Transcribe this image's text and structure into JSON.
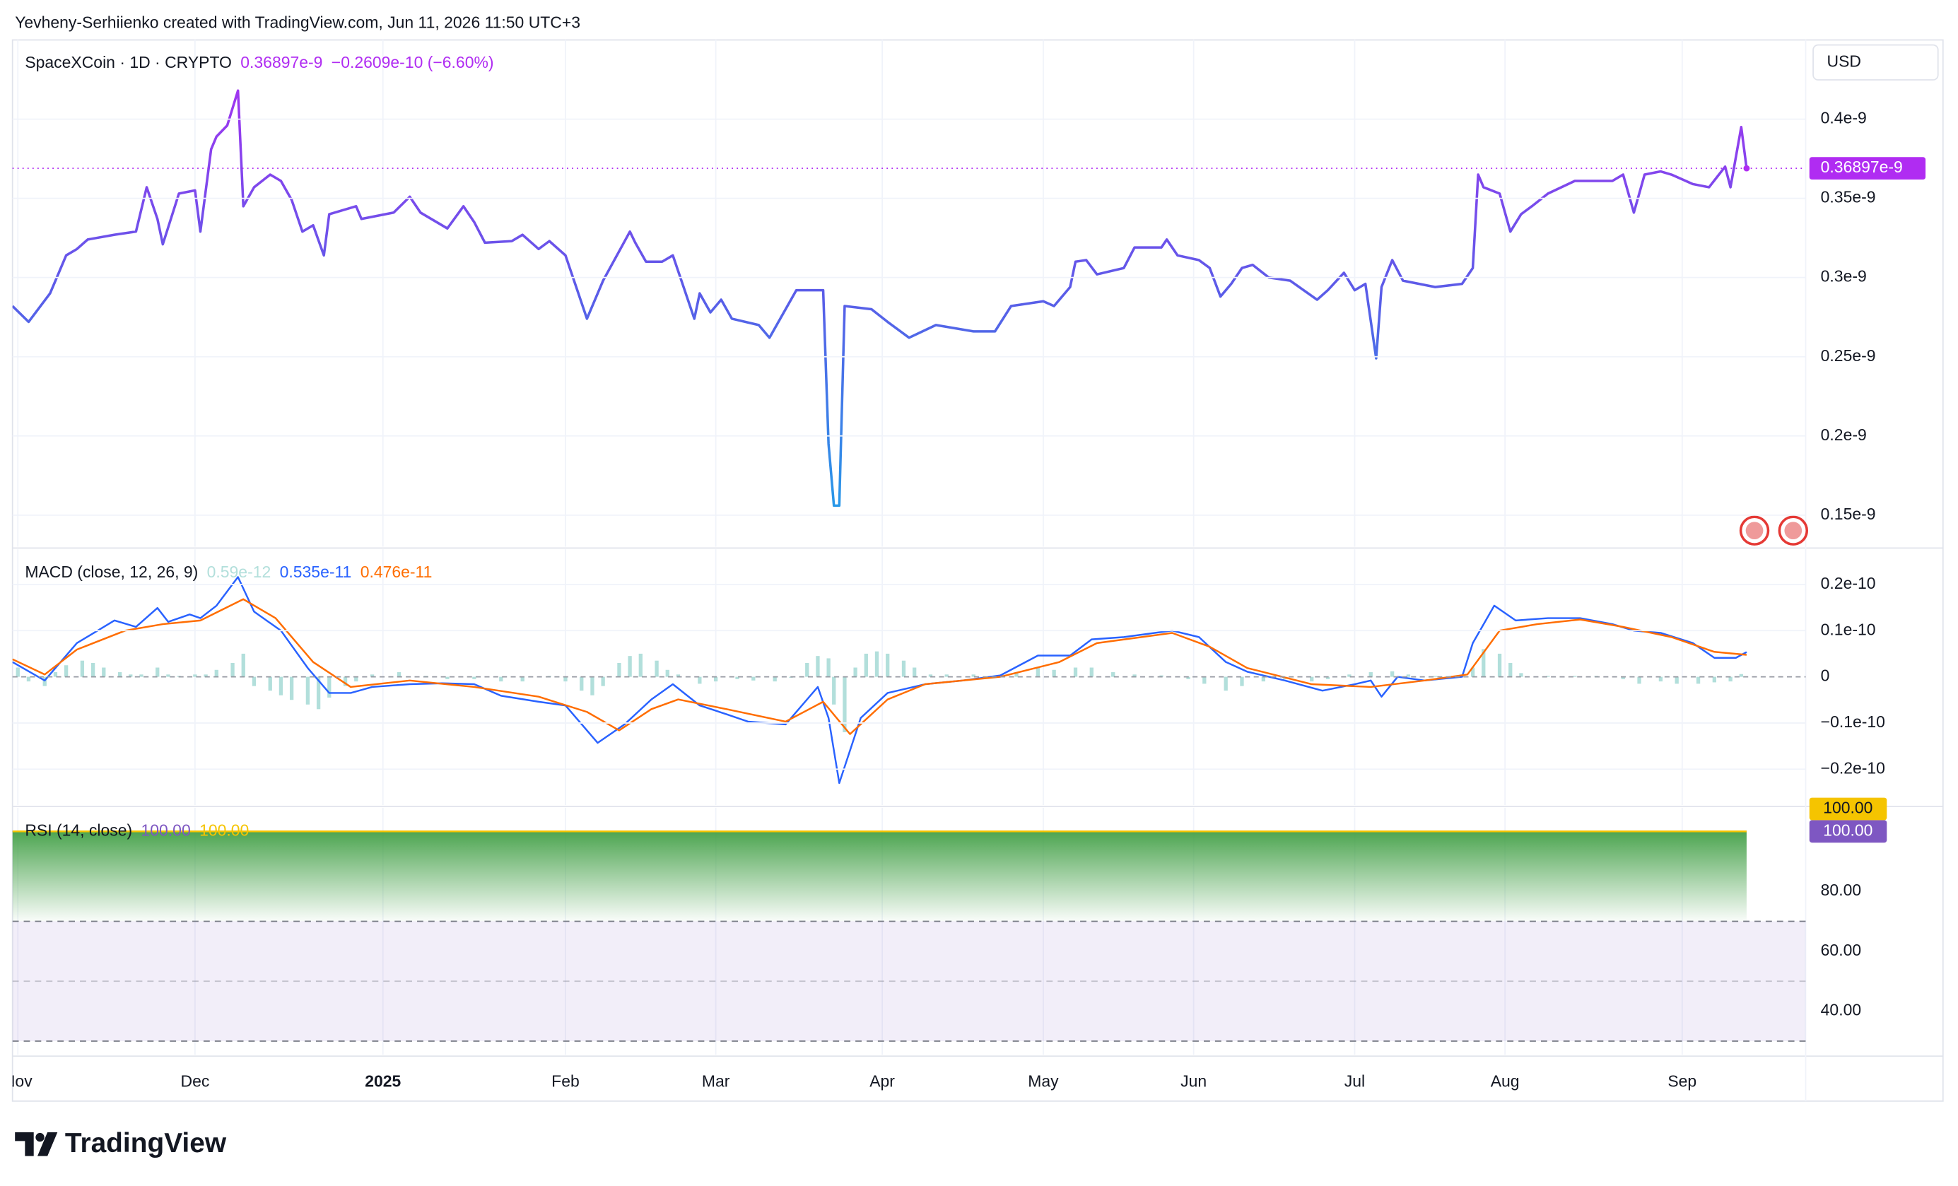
{
  "attribution": "Yevheny-Serhiienko created with TradingView.com, Jun 11, 2026 11:50 UTC+3",
  "logo_text": "TradingView",
  "chart_data": [
    {
      "type": "line",
      "title": "SpaceXCoin · 1D · CRYPTO",
      "last_label": "0.36897e-9",
      "change_label": "−0.2609e-10 (−6.60%)",
      "currency": "USD",
      "xlim": [
        0,
        334
      ],
      "ylim": [
        1.3e-10,
        4.5e-10
      ],
      "grid": true,
      "yticks": [
        {
          "value": 1.5e-10,
          "label": "0.15e-9"
        },
        {
          "value": 2e-10,
          "label": "0.2e-9"
        },
        {
          "value": 2.5e-10,
          "label": "0.25e-9"
        },
        {
          "value": 3e-10,
          "label": "0.3e-9"
        },
        {
          "value": 3.5e-10,
          "label": "0.35e-9"
        },
        {
          "value": 4e-10,
          "label": "0.4e-9"
        }
      ],
      "series": [
        {
          "colors": [
            "#b02cf2",
            "#5a5ce8",
            "#1fa3e8"
          ],
          "x": [
            0,
            3,
            7,
            8,
            10,
            12,
            14,
            19,
            23,
            25,
            27,
            28,
            31,
            34,
            35,
            37,
            38,
            40,
            42,
            43,
            45,
            48,
            50,
            52,
            54,
            56,
            58,
            59,
            64,
            65,
            71,
            74,
            76,
            81,
            84,
            86,
            88,
            93,
            95,
            98,
            100,
            103,
            105,
            107,
            110,
            115,
            116,
            118,
            121,
            123,
            125,
            127,
            128,
            130,
            132,
            134,
            139,
            141,
            146,
            151,
            152,
            153,
            154,
            155,
            160,
            163,
            167,
            172,
            179,
            183,
            186,
            192,
            194,
            197,
            198,
            200,
            202,
            207,
            209,
            214,
            215,
            217,
            221,
            223,
            225,
            227,
            229,
            231,
            234,
            238,
            243,
            245,
            248,
            250,
            252,
            254,
            255,
            257,
            259,
            265,
            270,
            272,
            273,
            274,
            277,
            279,
            281,
            283,
            286,
            291,
            298,
            300,
            302,
            304,
            307,
            309,
            313,
            316,
            319,
            320,
            322,
            323
          ],
          "values": [
            2.82e-10,
            2.72e-10,
            2.9e-10,
            2.98e-10,
            3.14e-10,
            3.18e-10,
            3.24e-10,
            3.27e-10,
            3.29e-10,
            3.57e-10,
            3.37e-10,
            3.21e-10,
            3.53e-10,
            3.55e-10,
            3.29e-10,
            3.81e-10,
            3.89e-10,
            3.96e-10,
            4.18e-10,
            3.45e-10,
            3.57e-10,
            3.65e-10,
            3.61e-10,
            3.49e-10,
            3.29e-10,
            3.33e-10,
            3.14e-10,
            3.4e-10,
            3.45e-10,
            3.37e-10,
            3.41e-10,
            3.51e-10,
            3.41e-10,
            3.31e-10,
            3.45e-10,
            3.35e-10,
            3.22e-10,
            3.23e-10,
            3.27e-10,
            3.18e-10,
            3.23e-10,
            3.14e-10,
            2.94e-10,
            2.74e-10,
            2.98e-10,
            3.29e-10,
            3.22e-10,
            3.1e-10,
            3.1e-10,
            3.14e-10,
            2.94e-10,
            2.74e-10,
            2.9e-10,
            2.78e-10,
            2.86e-10,
            2.74e-10,
            2.7e-10,
            2.62e-10,
            2.92e-10,
            2.92e-10,
            1.95e-10,
            1.56e-10,
            1.56e-10,
            2.82e-10,
            2.8e-10,
            2.72e-10,
            2.62e-10,
            2.7e-10,
            2.66e-10,
            2.66e-10,
            2.82e-10,
            2.85e-10,
            2.82e-10,
            2.94e-10,
            3.1e-10,
            3.11e-10,
            3.02e-10,
            3.06e-10,
            3.19e-10,
            3.19e-10,
            3.24e-10,
            3.14e-10,
            3.11e-10,
            3.06e-10,
            2.88e-10,
            2.96e-10,
            3.06e-10,
            3.08e-10,
            3e-10,
            2.98e-10,
            2.86e-10,
            2.92e-10,
            3.03e-10,
            2.92e-10,
            2.96e-10,
            2.49e-10,
            2.94e-10,
            3.11e-10,
            2.98e-10,
            2.94e-10,
            2.96e-10,
            3.06e-10,
            3.65e-10,
            3.57e-10,
            3.53e-10,
            3.29e-10,
            3.4e-10,
            3.45e-10,
            3.53e-10,
            3.61e-10,
            3.61e-10,
            3.65e-10,
            3.41e-10,
            3.65e-10,
            3.67e-10,
            3.65e-10,
            3.59e-10,
            3.57e-10,
            3.7e-10,
            3.57e-10,
            3.95e-10,
            3.6897e-10
          ]
        }
      ]
    },
    {
      "type": "line",
      "title": "MACD (close, 12, 26, 9)",
      "xlim": [
        0,
        334
      ],
      "ylim": [
        -2.78e-11,
        2.76e-11
      ],
      "grid": true,
      "yticks": [
        {
          "value": -2e-11,
          "label": "−0.2e-10"
        },
        {
          "value": -1e-11,
          "label": "−0.1e-10"
        },
        0,
        {
          "value": 1e-11,
          "label": "0.1e-10"
        },
        {
          "value": 2e-11,
          "label": "0.2e-10"
        }
      ],
      "series": [
        {
          "type": "bar",
          "color": "#b2dfdb",
          "legend_label": "0.59e-12",
          "x": [
            1,
            3,
            6,
            8,
            10,
            13,
            15,
            17,
            20,
            22,
            24,
            27,
            29,
            31,
            34,
            36,
            38,
            41,
            43,
            45,
            48,
            50,
            52,
            55,
            57,
            59,
            62,
            64,
            67,
            72,
            77,
            81,
            86,
            91,
            95,
            100,
            103,
            106,
            108,
            110,
            113,
            115,
            117,
            120,
            122,
            124,
            128,
            131,
            135,
            138,
            142,
            145,
            148,
            150,
            152,
            153,
            155,
            157,
            159,
            161,
            163,
            166,
            168,
            171,
            174,
            179,
            184,
            187,
            191,
            194,
            198,
            201,
            205,
            209,
            214,
            219,
            222,
            226,
            229,
            233,
            237,
            242,
            245,
            249,
            253,
            257,
            260,
            265,
            270,
            272,
            274,
            277,
            279,
            281,
            286,
            291,
            295,
            300,
            303,
            307,
            310,
            314,
            317,
            320,
            322
          ],
          "values": [
            2e-12,
            -1e-12,
            -2e-12,
            1e-12,
            2.5e-12,
            3.5e-12,
            3e-12,
            2e-12,
            1e-12,
            5e-13,
            5e-13,
            2e-12,
            5e-13,
            2e-13,
            5e-13,
            5e-13,
            1.5e-12,
            3e-12,
            5e-12,
            -2e-12,
            -3e-12,
            -4e-12,
            -5e-12,
            -6e-12,
            -7e-12,
            -4.5e-12,
            -2e-12,
            -1e-12,
            5e-13,
            1e-12,
            2e-13,
            -5e-13,
            -5e-13,
            -1e-12,
            -1e-12,
            2e-13,
            -1e-12,
            -3e-12,
            -4e-12,
            -2e-12,
            3e-12,
            4.5e-12,
            5e-12,
            3.5e-12,
            1.5e-12,
            5e-13,
            -1.5e-12,
            -1e-12,
            -5e-13,
            -8e-13,
            -1e-12,
            -2e-13,
            3e-12,
            4.5e-12,
            4e-12,
            -6e-12,
            -1.2e-11,
            2e-12,
            5e-12,
            5.5e-12,
            5e-12,
            3.5e-12,
            2e-12,
            5e-13,
            5e-13,
            5e-13,
            2e-13,
            1e-12,
            2e-12,
            1.5e-12,
            2e-12,
            2e-12,
            1e-12,
            5e-13,
            3e-13,
            -5e-13,
            -1.5e-12,
            -3e-12,
            -2e-12,
            -1e-12,
            -5e-13,
            -1e-12,
            -5e-13,
            5e-13,
            1e-12,
            1.2e-12,
            5e-13,
            2e-13,
            5e-13,
            2e-12,
            6e-12,
            5e-12,
            3e-12,
            8e-13,
            2e-13,
            2e-13,
            2e-13,
            -5e-13,
            -1.5e-12,
            -1e-12,
            -1.5e-12,
            -1.5e-12,
            -1.2e-12,
            -1e-12,
            5.9e-13
          ]
        },
        {
          "color": "#2962ff",
          "legend_label": "0.535e-11",
          "x": [
            0,
            6,
            12,
            19,
            23,
            27,
            29,
            33,
            35,
            38,
            42,
            45,
            50,
            55,
            59,
            63,
            67,
            74,
            80,
            86,
            91,
            98,
            103,
            109,
            114,
            119,
            123,
            128,
            133,
            137,
            144,
            150,
            152,
            154,
            158,
            163,
            170,
            177,
            184,
            191,
            197,
            201,
            207,
            216,
            221,
            226,
            230,
            237,
            244,
            250,
            253,
            255,
            258,
            263,
            270,
            272,
            276,
            280,
            286,
            292,
            298,
            302,
            307,
            313,
            317,
            321,
            323
          ],
          "values": [
            3.2e-12,
            -8e-13,
            7.3e-12,
            1.22e-11,
            1.08e-11,
            1.49e-11,
            1.19e-11,
            1.35e-11,
            1.27e-11,
            1.54e-11,
            2.16e-11,
            1.41e-11,
            1e-11,
            1.9e-12,
            -3.5e-12,
            -3.5e-12,
            -2.2e-12,
            -1.6e-12,
            -1.4e-12,
            -1.6e-12,
            -4.1e-12,
            -5.4e-12,
            -6.2e-12,
            -1.43e-11,
            -1.03e-11,
            -4.9e-12,
            -1.6e-12,
            -6.2e-12,
            -8.1e-12,
            -9.7e-12,
            -1.03e-11,
            -2.2e-12,
            -8.9e-12,
            -2.3e-11,
            -8.9e-12,
            -3.5e-12,
            -1.6e-12,
            -8e-13,
            3e-13,
            4.6e-12,
            4.6e-12,
            8.1e-12,
            8.6e-12,
            1e-11,
            8.6e-12,
            3.2e-12,
            1.1e-12,
            -8e-13,
            -3e-12,
            -1.6e-12,
            -8e-13,
            -4.3e-12,
            0,
            -8e-13,
            0,
            7.3e-12,
            1.54e-11,
            1.22e-11,
            1.27e-11,
            1.27e-11,
            1.14e-11,
            1e-11,
            9.5e-12,
            7.3e-12,
            4.1e-12,
            4.1e-12,
            5.35e-12
          ]
        },
        {
          "color": "#ff6d00",
          "legend_label": "0.476e-11",
          "x": [
            0,
            6,
            12,
            21,
            28,
            35,
            43,
            49,
            56,
            63,
            74,
            86,
            98,
            107,
            113,
            119,
            124,
            133,
            144,
            151,
            156,
            163,
            170,
            184,
            195,
            202,
            216,
            223,
            230,
            242,
            253,
            263,
            271,
            277,
            284,
            292,
            300,
            309,
            317,
            323
          ],
          "values": [
            3.8e-12,
            5e-13,
            5.9e-12,
            1e-11,
            1.14e-11,
            1.22e-11,
            1.68e-11,
            1.27e-11,
            3.2e-12,
            -2.2e-12,
            -8e-13,
            -2.2e-12,
            -4.3e-12,
            -7.6e-12,
            -1.16e-11,
            -7e-12,
            -4.9e-12,
            -7e-12,
            -9.7e-12,
            -5.4e-12,
            -1.24e-11,
            -4.9e-12,
            -1.6e-12,
            0,
            3.2e-12,
            7.3e-12,
            9.5e-12,
            6.5e-12,
            1.9e-12,
            -1.6e-12,
            -2.2e-12,
            -8e-13,
            5e-13,
            1e-11,
            1.14e-11,
            1.24e-11,
            1.08e-11,
            8.6e-12,
            5.4e-12,
            4.76e-12
          ]
        }
      ]
    },
    {
      "type": "line",
      "title": "RSI (14, close)",
      "xlim": [
        0,
        334
      ],
      "ylim": [
        25.4,
        107.9
      ],
      "grid": "x",
      "yticks": [
        {
          "value": 40,
          "label": "40.00"
        },
        {
          "value": 60,
          "label": "60.00"
        },
        {
          "value": 80,
          "label": "80.00"
        }
      ],
      "bands": [
        30,
        50,
        70
      ],
      "band_color": "#7e57c2",
      "fill_color": "#43a047",
      "xticks": [
        {
          "value": 1,
          "label": "Nov"
        },
        {
          "value": 34,
          "label": "Dec"
        },
        {
          "value": 69,
          "label": "2025"
        },
        {
          "value": 103,
          "label": "Feb"
        },
        {
          "value": 131,
          "label": "Mar"
        },
        {
          "value": 162,
          "label": "Apr"
        },
        {
          "value": 192,
          "label": "May"
        },
        {
          "value": 220,
          "label": "Jun"
        },
        {
          "value": 250,
          "label": "Jul"
        },
        {
          "value": 278,
          "label": "Aug"
        },
        {
          "value": 311,
          "label": "Sep"
        }
      ],
      "series": [
        {
          "color": "#7e57c2",
          "legend_label": "100.00",
          "x": [
            0,
            323
          ],
          "values": [
            100,
            100
          ]
        },
        {
          "color": "#f5c400",
          "legend_label": "100.00",
          "x": [
            0,
            323
          ],
          "values": [
            100,
            100
          ]
        }
      ]
    }
  ]
}
